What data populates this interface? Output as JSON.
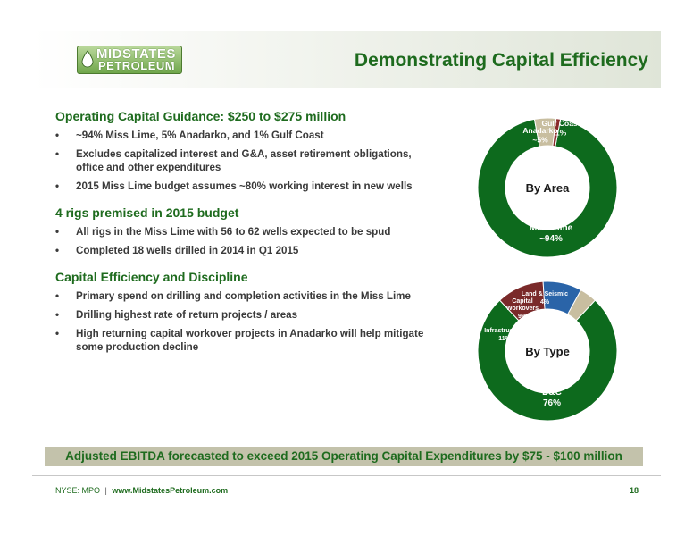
{
  "header": {
    "logo_line1": "MIDSTATES",
    "logo_line2": "PETROLEUM",
    "title": "Demonstrating Capital Efficiency"
  },
  "sections": [
    {
      "heading": "Operating Capital Guidance: $250 to $275 million",
      "bullets": [
        "~94% Miss Lime, 5% Anadarko, and 1% Gulf Coast",
        "Excludes capitalized interest and G&A, asset retirement obligations, office and other expenditures",
        "2015 Miss Lime budget assumes ~80% working interest in new wells"
      ]
    },
    {
      "heading": "4 rigs premised in 2015 budget",
      "bullets": [
        "All rigs in the Miss Lime with 56 to 62 wells expected to be spud",
        "Completed 18 wells drilled in 2014 in Q1 2015"
      ]
    },
    {
      "heading": "Capital Efficiency and Discipline",
      "bullets": [
        "Primary spend on drilling and completion activities in the Miss Lime",
        "Drilling highest rate of return projects / areas",
        "High returning capital workover projects in Anadarko will help mitigate some production decline"
      ]
    }
  ],
  "banner": "Adjusted EBITDA forecasted to exceed 2015 Operating Capital Expenditures by $75 - $100 million",
  "footer": {
    "ticker": "NYSE: MPO",
    "separator": "|",
    "url": "www.MidstatesPetroleum.com",
    "page": "18"
  },
  "chart_data": [
    {
      "type": "pie",
      "title": "By Area",
      "slices": [
        {
          "label": "Miss Lime",
          "value_label": "~94%",
          "value": 94,
          "color": "#0d6a1d"
        },
        {
          "label": "Anadarko",
          "value_label": "~5%",
          "value": 5,
          "color": "#c8bea0"
        },
        {
          "label": "Gulf Coast",
          "value_label": "1%",
          "value": 1,
          "color": "#8a2a2a"
        }
      ]
    },
    {
      "type": "pie",
      "title": "By Type",
      "slices": [
        {
          "label": "D&C",
          "value_label": "76%",
          "value": 76,
          "color": "#0d6a1d"
        },
        {
          "label": "Infrastructure",
          "value_label": "11%",
          "value": 11,
          "color": "#7a2a2a"
        },
        {
          "label": "Capital Workovers",
          "value_label": "9%",
          "value": 9,
          "color": "#2a64a8"
        },
        {
          "label": "Land & Seismic",
          "value_label": "4%",
          "value": 4,
          "color": "#c8bea0"
        }
      ]
    }
  ]
}
